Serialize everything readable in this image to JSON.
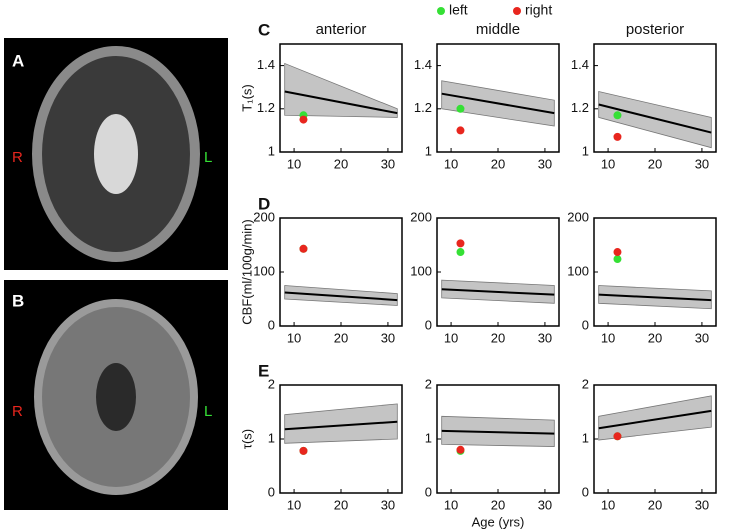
{
  "images": [
    {
      "label": "A",
      "left_side": "R",
      "right_side": "L"
    },
    {
      "label": "B",
      "left_side": "R",
      "right_side": "L"
    }
  ],
  "legend": [
    {
      "name": "left",
      "color": "#35e035"
    },
    {
      "name": "right",
      "color": "#e8261e"
    }
  ],
  "chart_data": [
    {
      "type": "regression",
      "panel": "C",
      "title": "anterior",
      "ylabel": "T₁(s)",
      "xlim": [
        7,
        33
      ],
      "xticks": [
        10,
        20,
        30
      ],
      "ylim": [
        1,
        1.5
      ],
      "yticks": [
        1,
        1.2,
        1.4
      ],
      "x": [
        8,
        32
      ],
      "fit": [
        1.28,
        1.18
      ],
      "upper": [
        1.41,
        1.2
      ],
      "lower": [
        1.17,
        1.16
      ],
      "point_x": 12,
      "points": [
        1.17,
        1.15
      ]
    },
    {
      "type": "regression",
      "title": "middle",
      "xlim": [
        7,
        33
      ],
      "xticks": [
        10,
        20,
        30
      ],
      "ylim": [
        1,
        1.5
      ],
      "yticks": [
        1,
        1.2,
        1.4
      ],
      "x": [
        8,
        32
      ],
      "fit": [
        1.27,
        1.18
      ],
      "upper": [
        1.33,
        1.24
      ],
      "lower": [
        1.2,
        1.12
      ],
      "point_x": 12,
      "points": [
        1.2,
        1.1
      ]
    },
    {
      "type": "regression",
      "title": "posterior",
      "xlim": [
        7,
        33
      ],
      "xticks": [
        10,
        20,
        30
      ],
      "ylim": [
        1,
        1.5
      ],
      "yticks": [
        1,
        1.2,
        1.4
      ],
      "x": [
        8,
        32
      ],
      "fit": [
        1.22,
        1.09
      ],
      "upper": [
        1.28,
        1.16
      ],
      "lower": [
        1.16,
        1.02
      ],
      "point_x": 12,
      "points": [
        1.17,
        1.07
      ]
    },
    {
      "type": "regression",
      "panel": "D",
      "ylabel": "CBF(ml/100g/min)",
      "xlim": [
        7,
        33
      ],
      "xticks": [
        10,
        20,
        30
      ],
      "ylim": [
        0,
        200
      ],
      "yticks": [
        0,
        100,
        200
      ],
      "x": [
        8,
        32
      ],
      "fit": [
        62,
        48
      ],
      "upper": [
        75,
        60
      ],
      "lower": [
        50,
        38
      ],
      "point_x": 12,
      "points": [
        143,
        143
      ]
    },
    {
      "type": "regression",
      "xlim": [
        7,
        33
      ],
      "xticks": [
        10,
        20,
        30
      ],
      "ylim": [
        0,
        200
      ],
      "yticks": [
        0,
        100,
        200
      ],
      "x": [
        8,
        32
      ],
      "fit": [
        68,
        58
      ],
      "upper": [
        85,
        75
      ],
      "lower": [
        52,
        42
      ],
      "point_x": 12,
      "points": [
        137,
        153
      ]
    },
    {
      "type": "regression",
      "xlim": [
        7,
        33
      ],
      "xticks": [
        10,
        20,
        30
      ],
      "ylim": [
        0,
        200
      ],
      "yticks": [
        0,
        100,
        200
      ],
      "x": [
        8,
        32
      ],
      "fit": [
        58,
        48
      ],
      "upper": [
        75,
        65
      ],
      "lower": [
        42,
        32
      ],
      "point_x": 12,
      "points": [
        124,
        137
      ]
    },
    {
      "type": "regression",
      "panel": "E",
      "ylabel": "τ(s)",
      "xlim": [
        7,
        33
      ],
      "xticks": [
        10,
        20,
        30
      ],
      "ylim": [
        0,
        2
      ],
      "yticks": [
        0,
        1,
        2
      ],
      "x": [
        8,
        32
      ],
      "fit": [
        1.18,
        1.32
      ],
      "upper": [
        1.45,
        1.65
      ],
      "lower": [
        0.92,
        1.0
      ],
      "point_x": 12,
      "points": [
        0.78,
        0.78
      ]
    },
    {
      "type": "regression",
      "xlabel": "Age (yrs)",
      "xlim": [
        7,
        33
      ],
      "xticks": [
        10,
        20,
        30
      ],
      "ylim": [
        0,
        2
      ],
      "yticks": [
        0,
        1,
        2
      ],
      "x": [
        8,
        32
      ],
      "fit": [
        1.15,
        1.1
      ],
      "upper": [
        1.42,
        1.35
      ],
      "lower": [
        0.9,
        0.86
      ],
      "point_x": 12,
      "points": [
        0.78,
        0.8
      ]
    },
    {
      "type": "regression",
      "xlim": [
        7,
        33
      ],
      "xticks": [
        10,
        20,
        30
      ],
      "ylim": [
        0,
        2
      ],
      "yticks": [
        0,
        1,
        2
      ],
      "x": [
        8,
        32
      ],
      "fit": [
        1.2,
        1.52
      ],
      "upper": [
        1.42,
        1.8
      ],
      "lower": [
        0.98,
        1.22
      ],
      "point_x": 12,
      "points": [
        1.05,
        1.05
      ]
    }
  ]
}
